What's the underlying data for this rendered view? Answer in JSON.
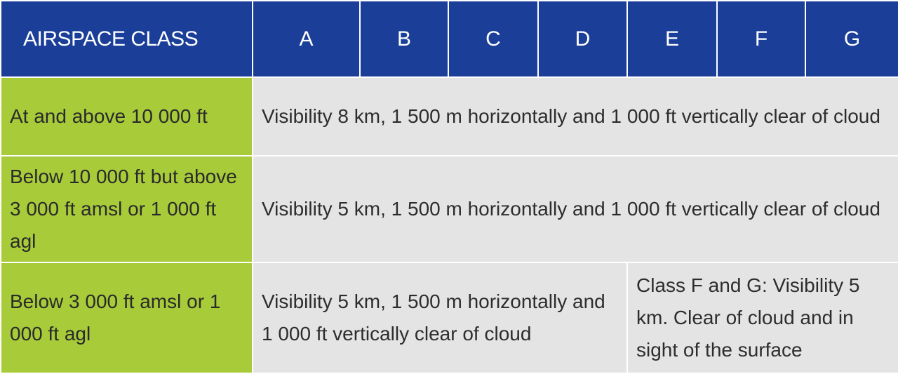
{
  "table": {
    "header": {
      "label": "AIRSPACE CLASS",
      "classes": [
        "A",
        "B",
        "C",
        "D",
        "E",
        "F",
        "G"
      ]
    },
    "rows": [
      {
        "altitude": "At and above 10 000 ft",
        "condition": "Visibility 8 km, 1 500 m horizontally and 1 000 ft vertically clear of cloud"
      },
      {
        "altitude": "Below 10 000 ft but above 3 000 ft amsl or 1 000 ft agl",
        "condition": "Visibility 5 km, 1 500 m horizontally and 1 000 ft vertically clear of cloud"
      },
      {
        "altitude": "Below 3 000 ft amsl or 1 000 ft agl",
        "condition_a_to_e": "Visibility 5 km, 1 500 m horizontally and 1 000 ft vertically clear of cloud",
        "condition_f_g": "Class F and G: Visibility 5 km. Clear of cloud and in sight of the surface"
      }
    ]
  },
  "colors": {
    "header_bg": "#1b3f98",
    "row_header_bg": "#a8cb3a",
    "cell_bg": "#e4e4e4",
    "border": "#ffffff"
  }
}
